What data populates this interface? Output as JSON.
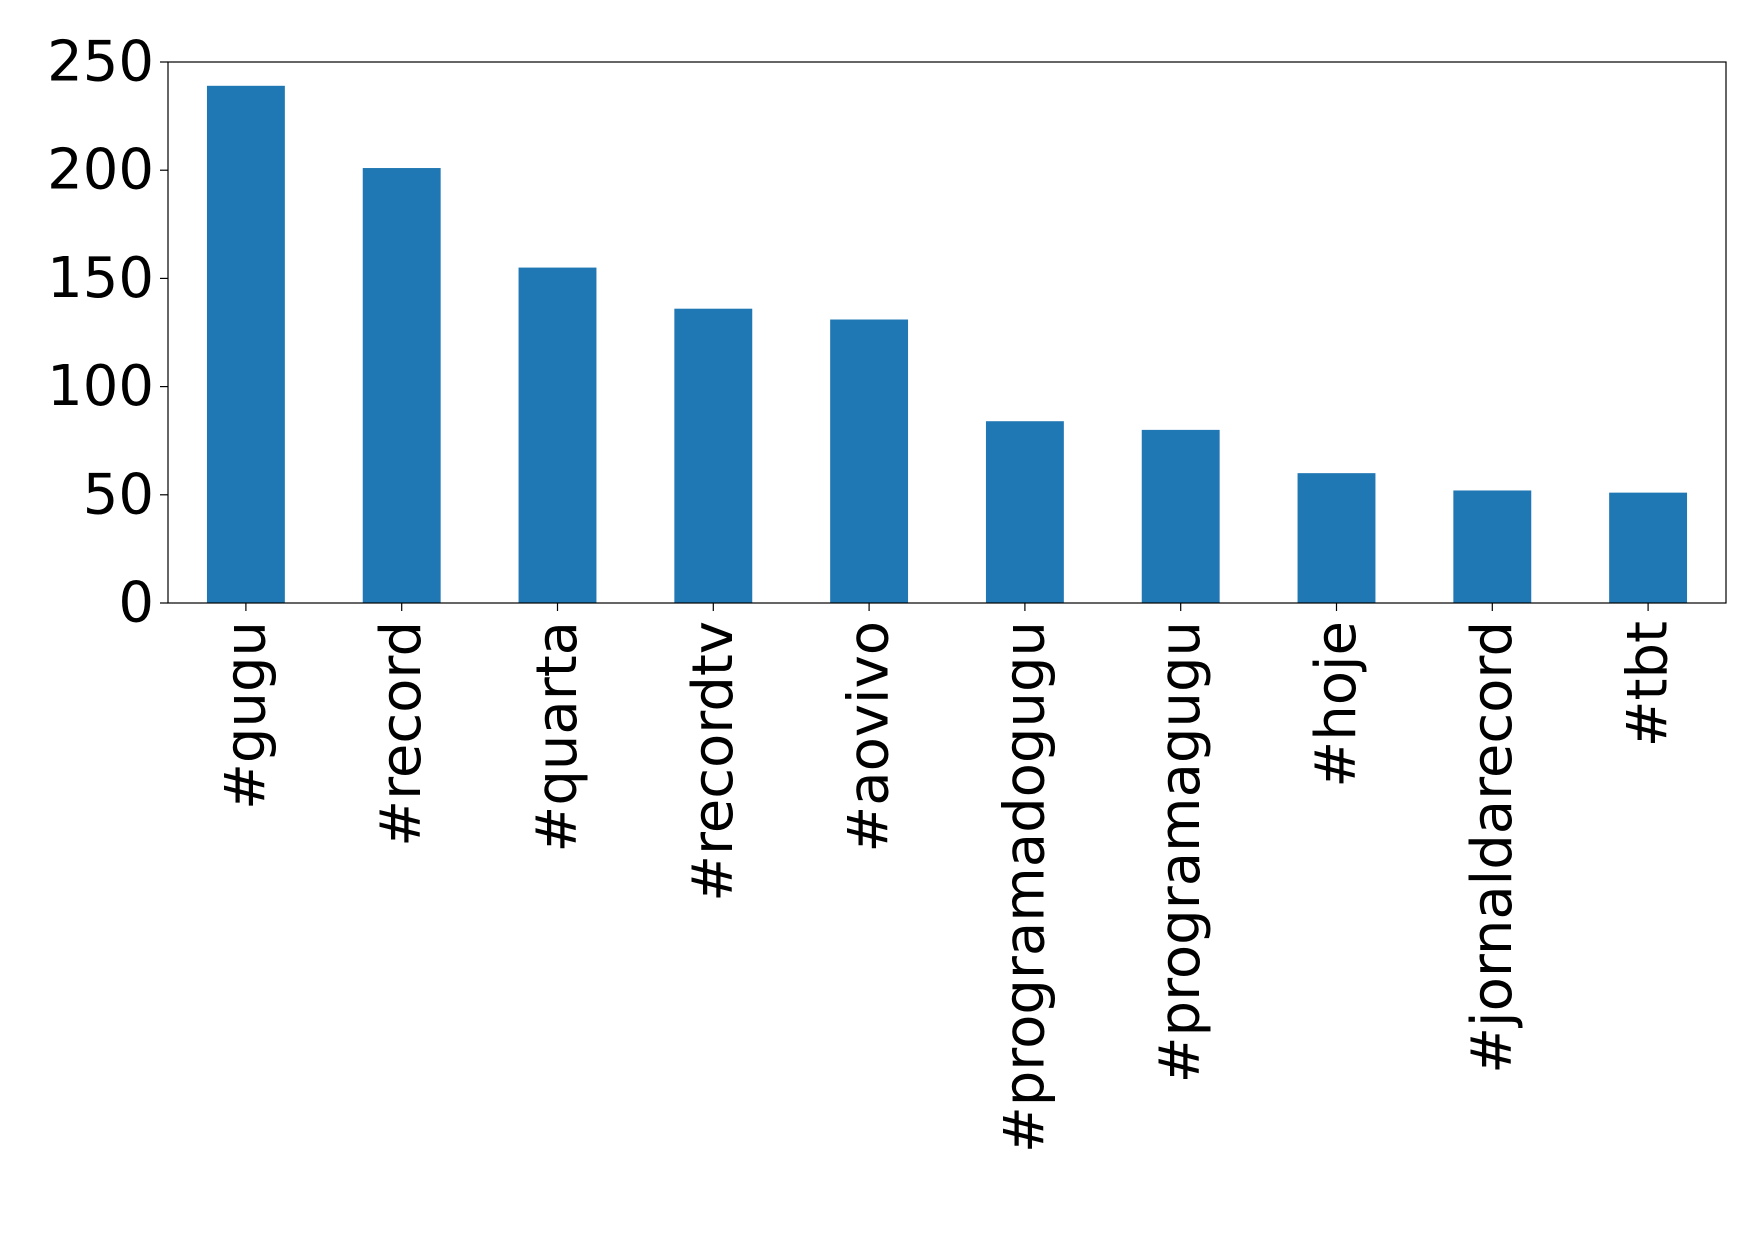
{
  "chart_data": {
    "type": "bar",
    "categories": [
      "#gugu",
      "#record",
      "#quarta",
      "#recordtv",
      "#aovivo",
      "#programadogugu",
      "#programagugu",
      "#hoje",
      "#jornaldarecord",
      "#tbt"
    ],
    "values": [
      239,
      201,
      155,
      136,
      131,
      84,
      80,
      60,
      52,
      51
    ],
    "title": "",
    "xlabel": "",
    "ylabel": "",
    "ylim": [
      0,
      250
    ],
    "yticks": [
      0,
      50,
      100,
      150,
      200,
      250
    ],
    "grid": false,
    "legend": "none",
    "bar_color": "#1f77b4"
  }
}
